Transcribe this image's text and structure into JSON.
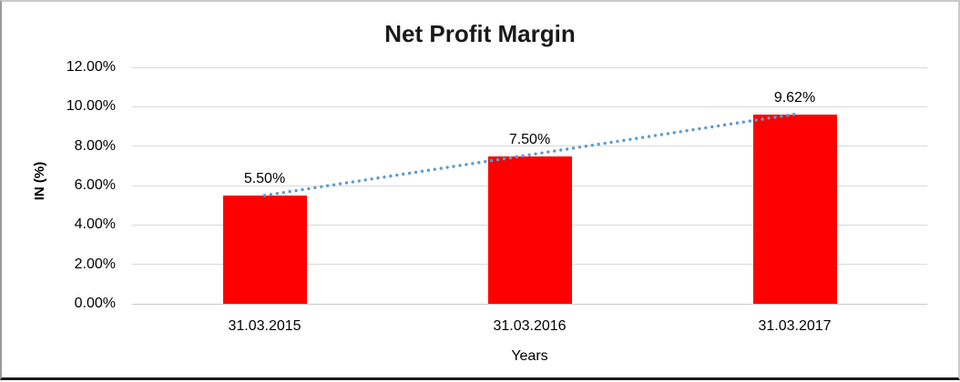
{
  "chart_data": {
    "type": "bar",
    "title": "Net Profit Margin",
    "xlabel": "Years",
    "ylabel": "IN (%)",
    "categories": [
      "31.03.2015",
      "31.03.2016",
      "31.03.2017"
    ],
    "values": [
      5.5,
      7.5,
      9.62
    ],
    "data_labels": [
      "5.50%",
      "7.50%",
      "9.62%"
    ],
    "y_ticks": [
      "0.00%",
      "2.00%",
      "4.00%",
      "6.00%",
      "8.00%",
      "10.00%",
      "12.00%"
    ],
    "ylim": [
      0,
      12
    ],
    "y_tick_interval": 2,
    "grid": true,
    "legend": "none",
    "colors": {
      "bar": "#FF0000",
      "trendline": "#5B9BD5",
      "gridline": "#D9D9D9",
      "axis_line": "#C8C8C8",
      "text": "#000000",
      "background": "#FFFFFF"
    },
    "trendline": {
      "type": "linear",
      "style": "dotted",
      "from": {
        "category_index": 0,
        "value": 5.5
      },
      "to": {
        "category_index": 2,
        "value": 9.62
      }
    }
  }
}
